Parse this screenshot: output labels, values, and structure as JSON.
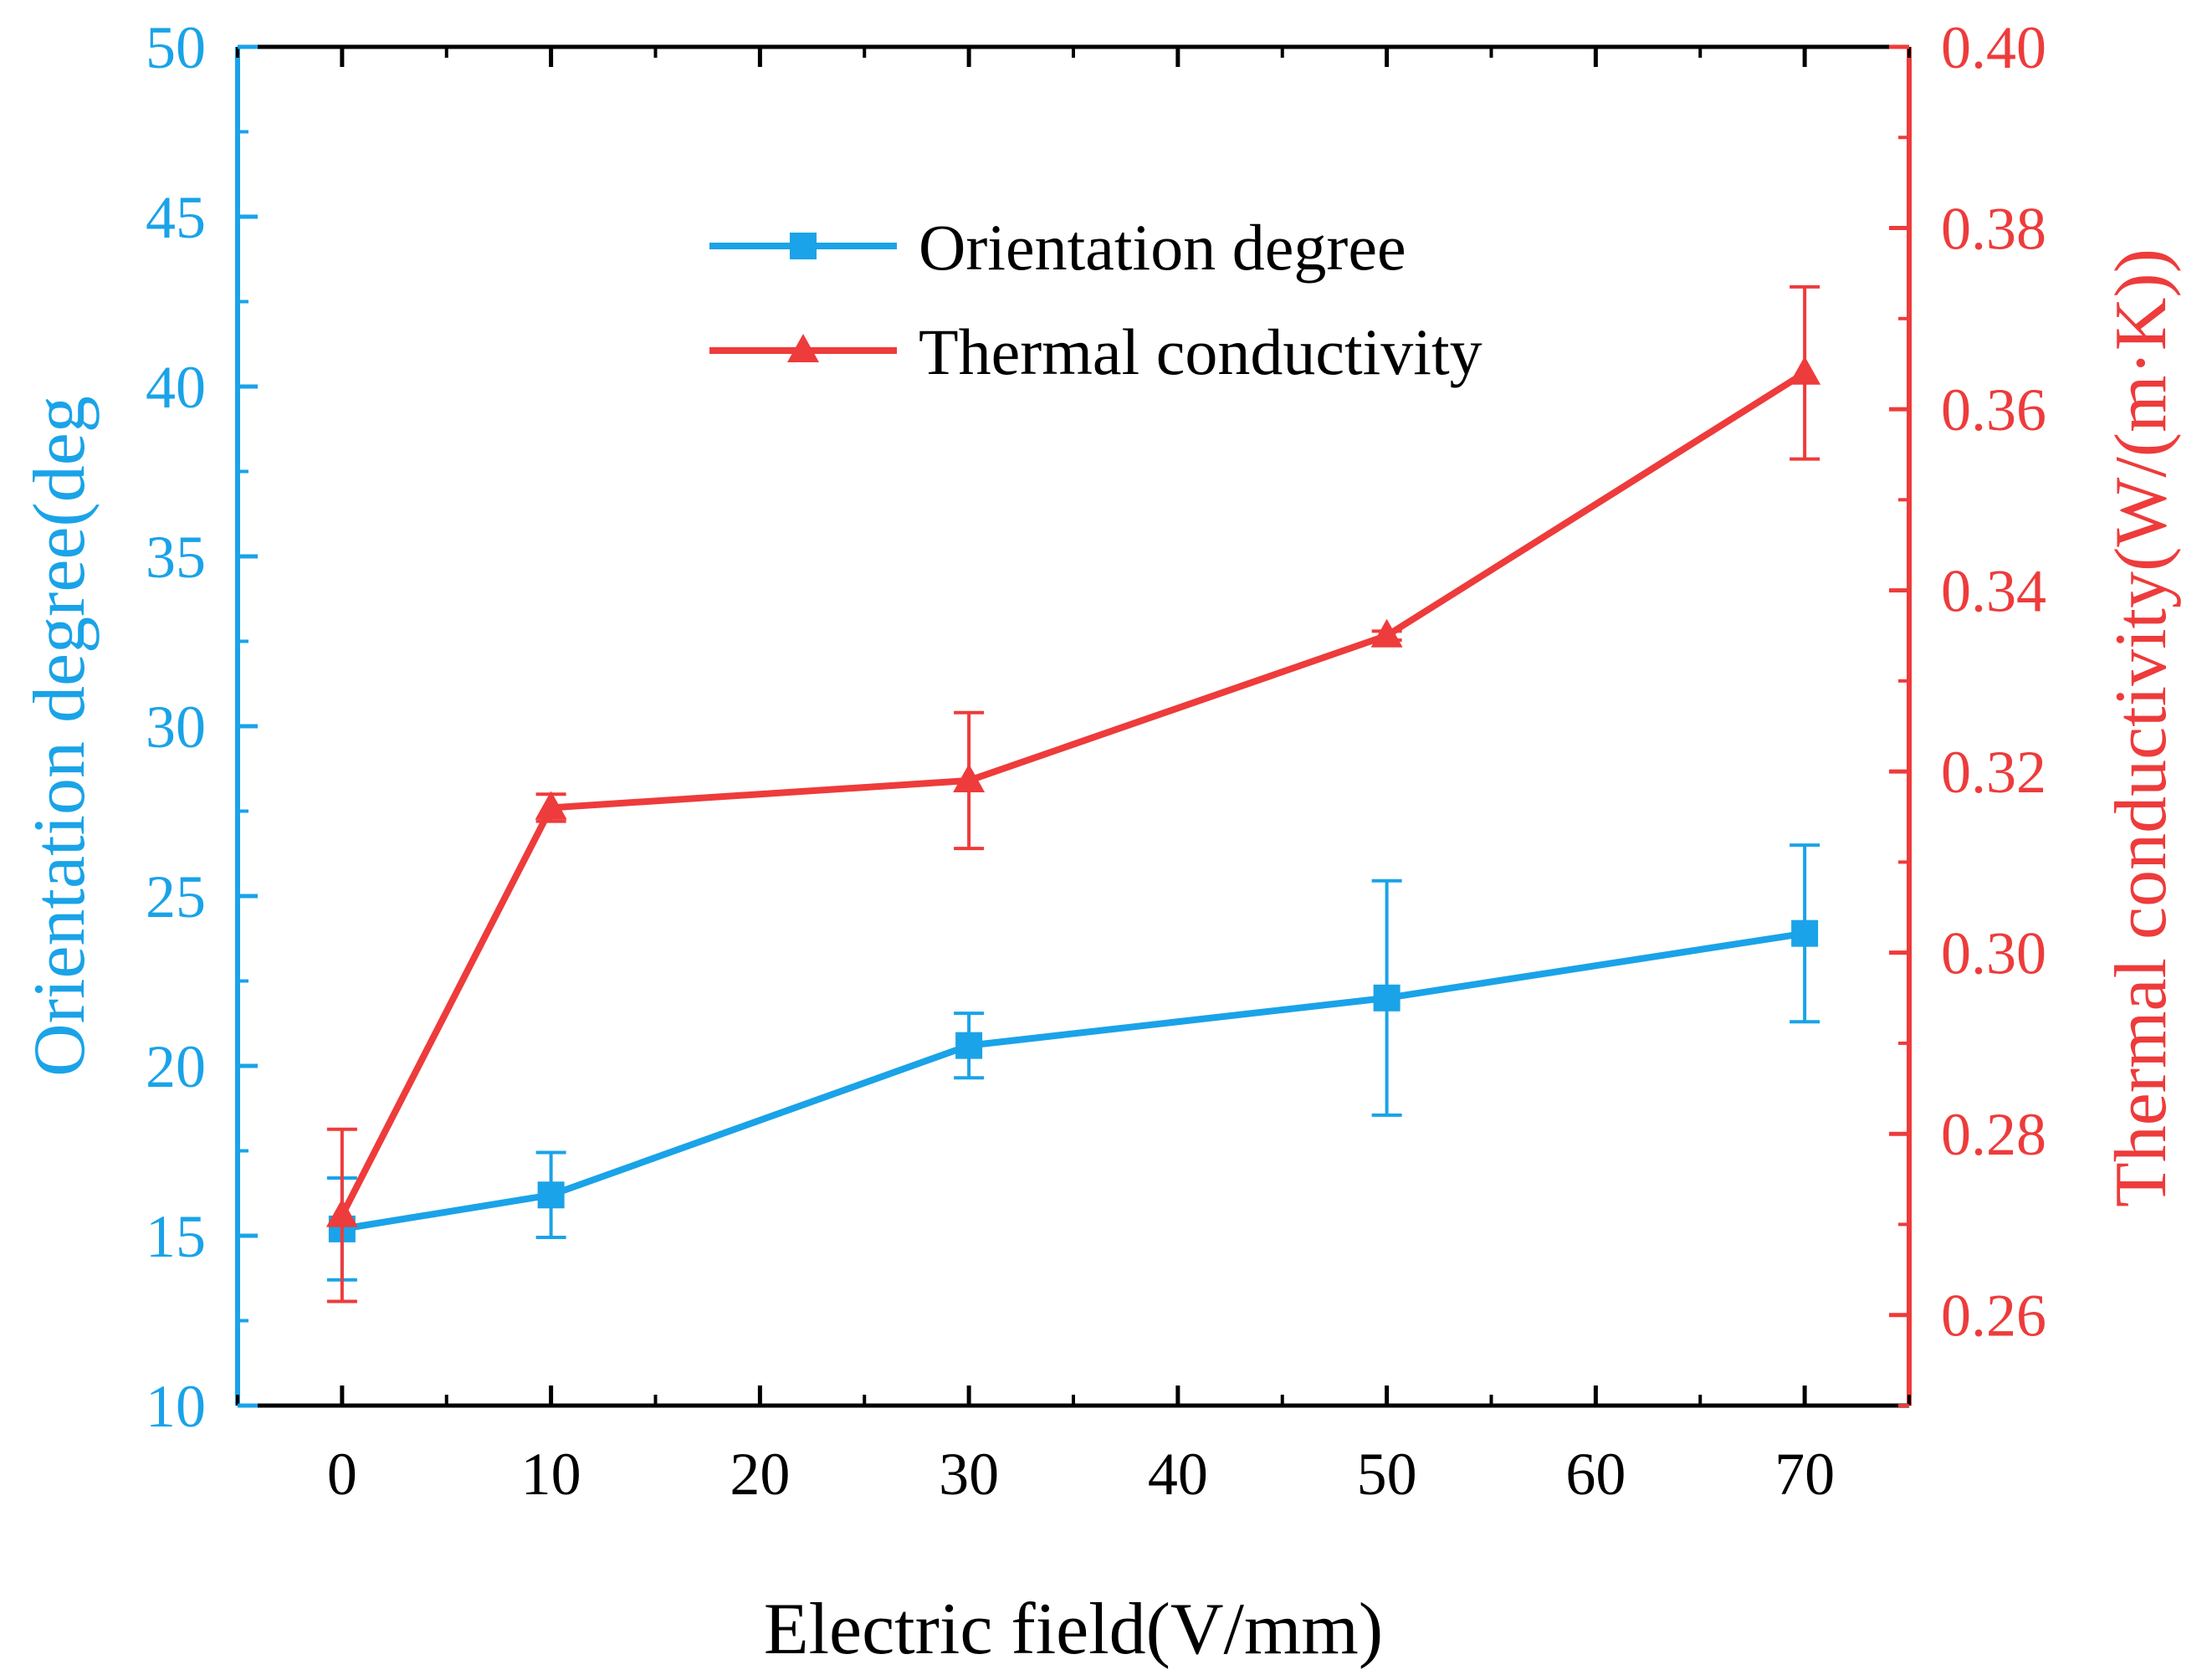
{
  "chart_data": {
    "type": "line",
    "title": "",
    "xlabel": "Electric field(V/mm)",
    "x_ticks": [
      "0",
      "10",
      "20",
      "30",
      "40",
      "50",
      "60",
      "70"
    ],
    "xlim": [
      -5,
      75
    ],
    "y_left": {
      "label": "Orientation degree(deg",
      "lim": [
        10,
        50
      ],
      "ticks": [
        "10",
        "15",
        "20",
        "25",
        "30",
        "35",
        "40",
        "45",
        "50"
      ],
      "color": "#1aa3e8"
    },
    "y_right": {
      "label": "Thermal conductivity(W/(m·K))",
      "lim": [
        0.25,
        0.4
      ],
      "ticks": [
        "0.26",
        "0.28",
        "0.30",
        "0.32",
        "0.34",
        "0.36",
        "0.38",
        "0.40"
      ],
      "color": "#ee3b3b"
    },
    "x": [
      0,
      10,
      30,
      50,
      70
    ],
    "series": [
      {
        "name": "Orientation degree",
        "axis": "left",
        "marker": "square",
        "color": "#1aa3e8",
        "values": [
          15.2,
          16.2,
          20.6,
          22.0,
          23.9
        ],
        "error": [
          1.5,
          1.25,
          0.95,
          3.45,
          2.6
        ]
      },
      {
        "name": "Thermal conductivity",
        "axis": "right",
        "marker": "triangle",
        "color": "#ee3b3b",
        "values": [
          0.271,
          0.316,
          0.319,
          0.335,
          0.364
        ],
        "error": [
          0.0095,
          0.0015,
          0.0075,
          0.0005,
          0.0095
        ]
      }
    ],
    "legend": {
      "position": "top-center",
      "entries": [
        "Orientation degree",
        "Thermal conductivity"
      ]
    },
    "grid": false,
    "frame_color": "#000000"
  }
}
